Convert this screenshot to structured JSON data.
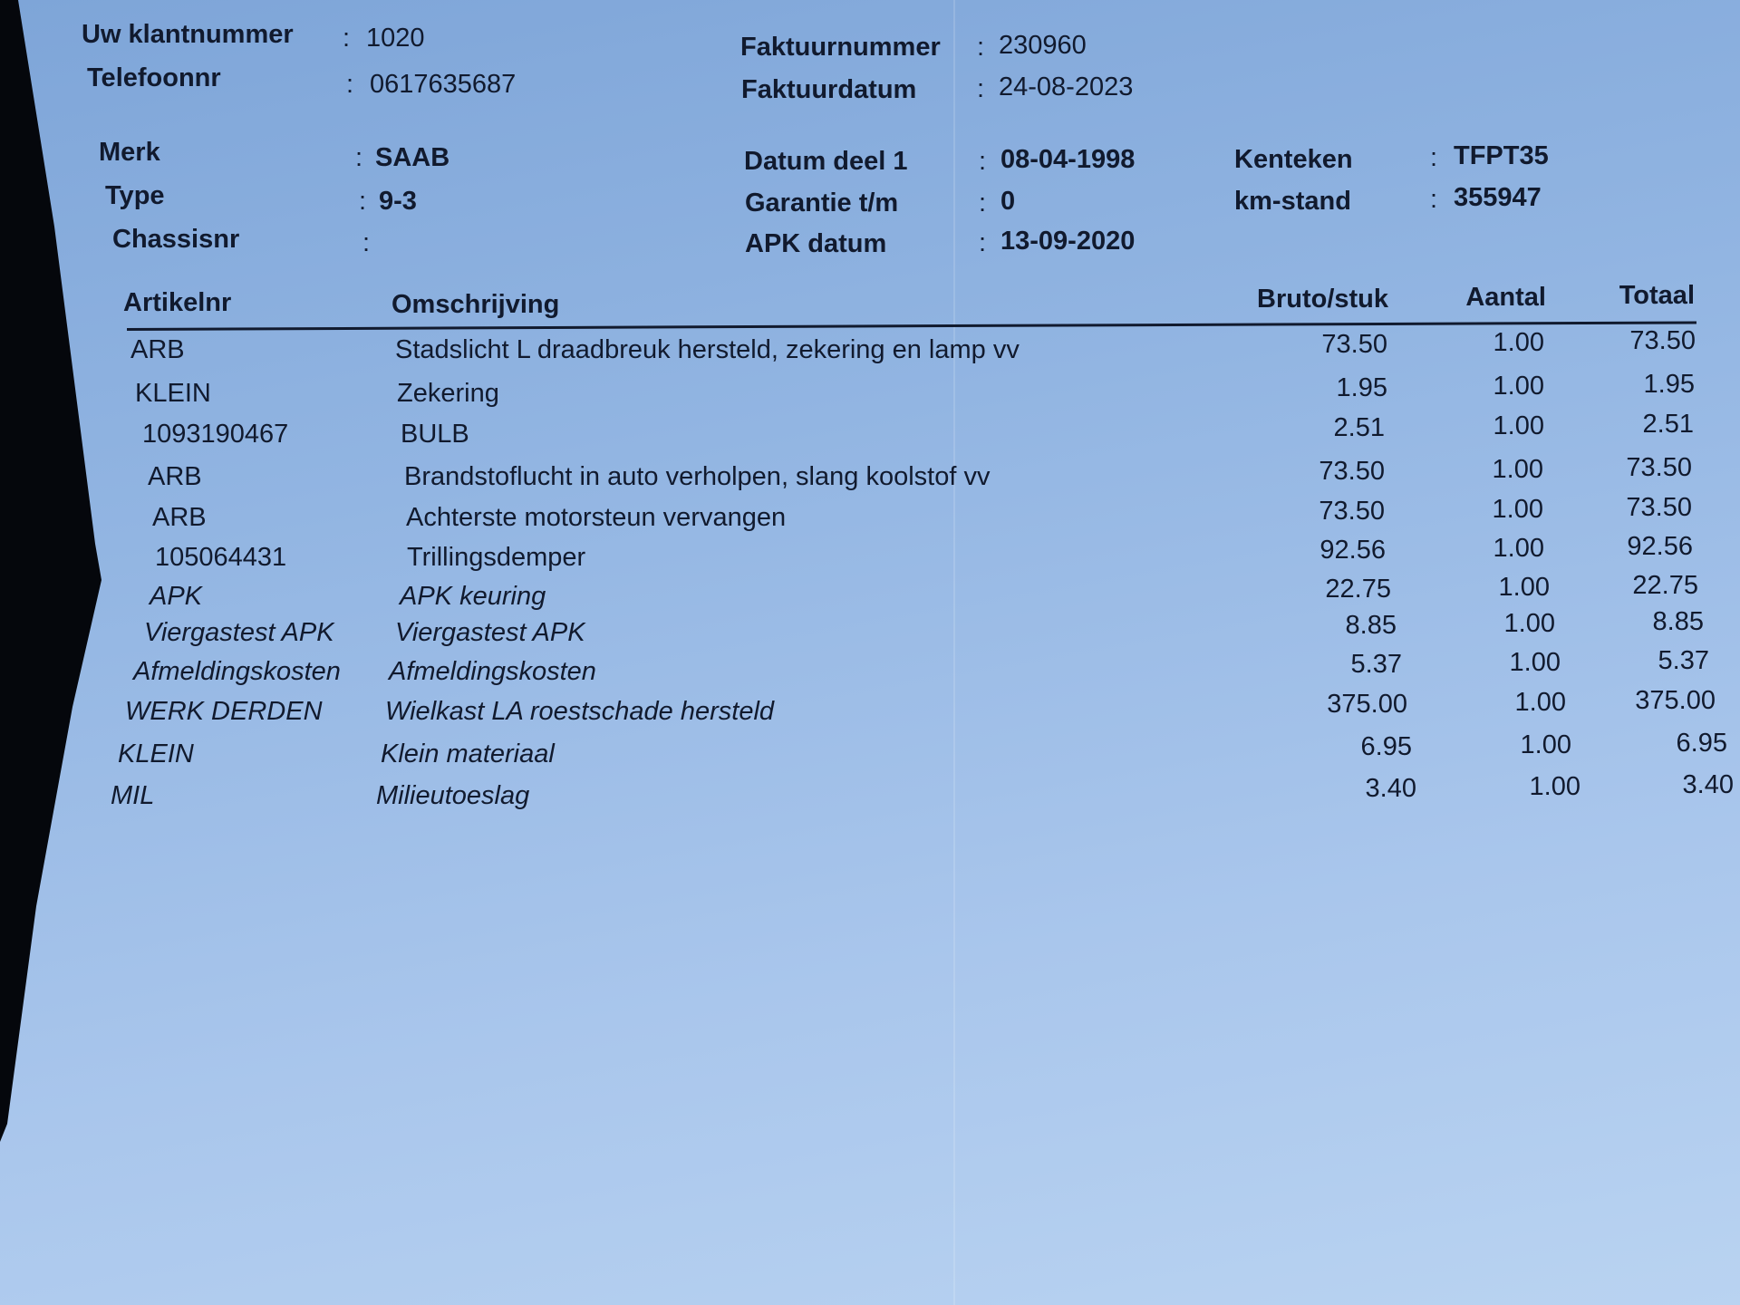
{
  "customer": {
    "klantnummer_label": "Uw klantnummer",
    "klantnummer": "1020",
    "telefoon_label": "Telefoonnr",
    "telefoon": "0617635687"
  },
  "invoice": {
    "nummer_label": "Faktuurnummer",
    "nummer": "230960",
    "datum_label": "Faktuurdatum",
    "datum": "24-08-2023"
  },
  "vehicle": {
    "merk_label": "Merk",
    "merk": "SAAB",
    "type_label": "Type",
    "type": "9-3",
    "chassis_label": "Chassisnr",
    "chassis": "",
    "datum_deel1_label": "Datum deel 1",
    "datum_deel1": "08-04-1998",
    "garantie_label": "Garantie t/m",
    "garantie": "0",
    "apk_label": "APK datum",
    "apk": "13-09-2020",
    "kenteken_label": "Kenteken",
    "kenteken": "TFPT35",
    "km_label": "km-stand",
    "km": "355947"
  },
  "table": {
    "headers": {
      "artikelnr": "Artikelnr",
      "omschrijving": "Omschrijving",
      "bruto": "Bruto/stuk",
      "aantal": "Aantal",
      "totaal": "Totaal"
    },
    "rows": [
      {
        "artikelnr": "ARB",
        "omschrijving": "Stadslicht L draadbreuk hersteld, zekering en lamp vv",
        "bruto": "73.50",
        "aantal": "1.00",
        "totaal": "73.50"
      },
      {
        "artikelnr": "KLEIN",
        "omschrijving": "Zekering",
        "bruto": "1.95",
        "aantal": "1.00",
        "totaal": "1.95"
      },
      {
        "artikelnr": "1093190467",
        "omschrijving": "BULB",
        "bruto": "2.51",
        "aantal": "1.00",
        "totaal": "2.51"
      },
      {
        "artikelnr": "ARB",
        "omschrijving": "Brandstoflucht in auto verholpen, slang koolstof vv",
        "bruto": "73.50",
        "aantal": "1.00",
        "totaal": "73.50"
      },
      {
        "artikelnr": "ARB",
        "omschrijving": "Achterste motorsteun vervangen",
        "bruto": "73.50",
        "aantal": "1.00",
        "totaal": "73.50"
      },
      {
        "artikelnr": "105064431",
        "omschrijving": "Trillingsdemper",
        "bruto": "92.56",
        "aantal": "1.00",
        "totaal": "92.56"
      },
      {
        "artikelnr": "APK",
        "omschrijving": "APK keuring",
        "bruto": "22.75",
        "aantal": "1.00",
        "totaal": "22.75"
      },
      {
        "artikelnr": "Viergastest APK",
        "omschrijving": "Viergastest APK",
        "bruto": "8.85",
        "aantal": "1.00",
        "totaal": "8.85"
      },
      {
        "artikelnr": "Afmeldingskosten",
        "omschrijving": "Afmeldingskosten",
        "bruto": "5.37",
        "aantal": "1.00",
        "totaal": "5.37"
      },
      {
        "artikelnr": "WERK DERDEN",
        "omschrijving": "Wielkast LA roestschade hersteld",
        "bruto": "375.00",
        "aantal": "1.00",
        "totaal": "375.00"
      },
      {
        "artikelnr": "KLEIN",
        "omschrijving": "Klein materiaal",
        "bruto": "6.95",
        "aantal": "1.00",
        "totaal": "6.95"
      },
      {
        "artikelnr": "MIL",
        "omschrijving": "Milieutoeslag",
        "bruto": "3.40",
        "aantal": "1.00",
        "totaal": "3.40"
      }
    ]
  }
}
